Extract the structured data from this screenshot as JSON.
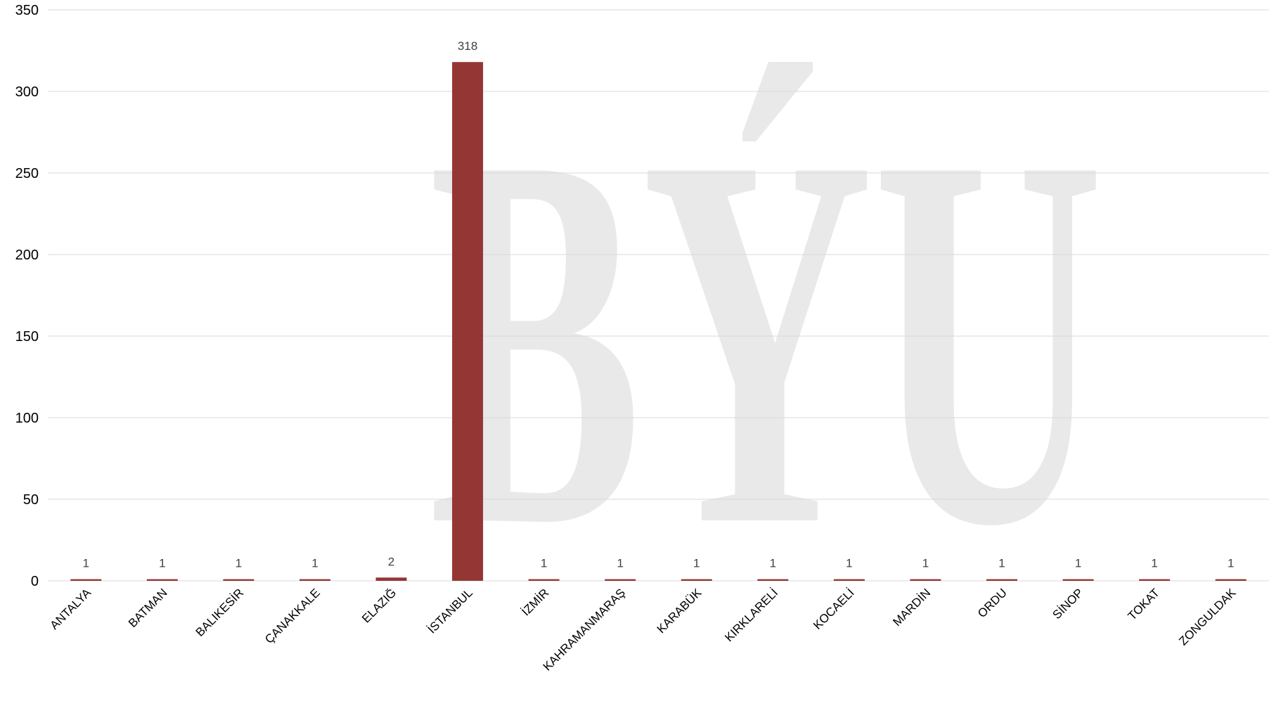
{
  "chart_data": {
    "type": "bar",
    "title": "",
    "xlabel": "",
    "ylabel": "",
    "ylim": [
      0,
      350
    ],
    "y_ticks": [
      0,
      50,
      100,
      150,
      200,
      250,
      300,
      350
    ],
    "grid": true,
    "legend": "none",
    "bar_color": "#943634",
    "categories": [
      "ANTALYA",
      "BATMAN",
      "BALIKESİR",
      "ÇANAKKALE",
      "ELAZIĞ",
      "İSTANBUL",
      "İZMİR",
      "KAHRAMANMARAŞ",
      "KARABÜK",
      "KIRKLARELİ",
      "KOCAELİ",
      "MARDİN",
      "ORDU",
      "SİNOP",
      "TOKAT",
      "ZONGULDAK"
    ],
    "values": [
      1,
      1,
      1,
      1,
      2,
      318,
      1,
      1,
      1,
      1,
      1,
      1,
      1,
      1,
      1,
      1
    ],
    "data_labels": [
      "1",
      "1",
      "1",
      "1",
      "2",
      "318",
      "1",
      "1",
      "1",
      "1",
      "1",
      "1",
      "1",
      "1",
      "1",
      "1"
    ]
  },
  "watermark": {
    "text": "BÝU",
    "color": "#e9e9e9"
  }
}
